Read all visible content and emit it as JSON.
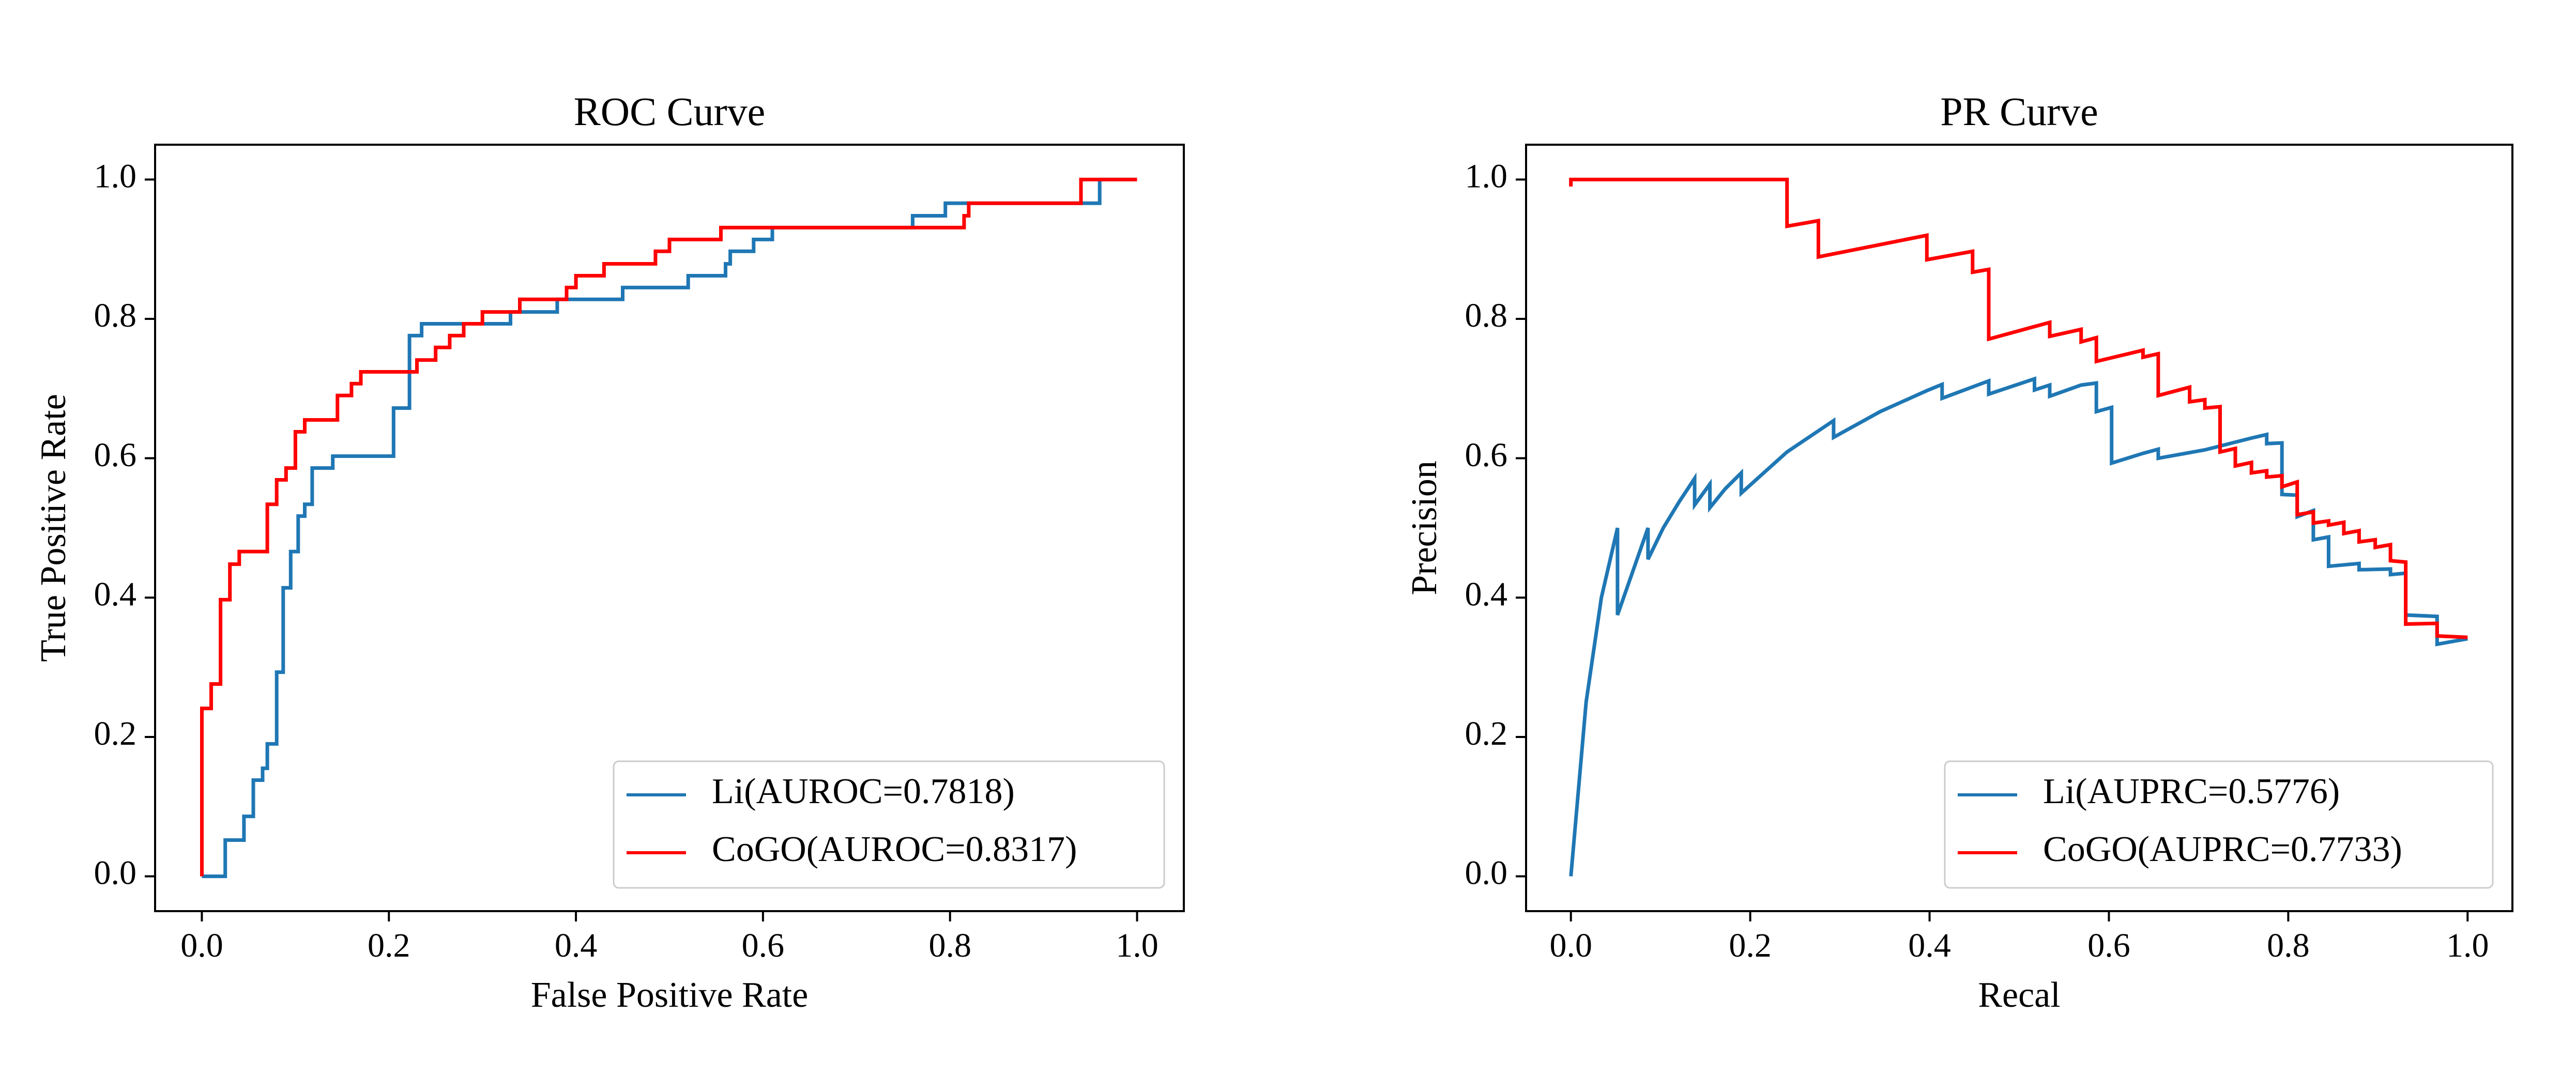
{
  "chart_data": [
    {
      "type": "line",
      "title": "ROC Curve",
      "xlabel": "False Positive Rate",
      "ylabel": "True Positive Rate",
      "xlim": [
        -0.05,
        1.05
      ],
      "ylim": [
        -0.05,
        1.05
      ],
      "xticks": [
        0.0,
        0.2,
        0.4,
        0.6,
        0.8,
        1.0
      ],
      "yticks": [
        0.0,
        0.2,
        0.4,
        0.6,
        0.8,
        1.0
      ],
      "xtick_labels": [
        "0.0",
        "0.2",
        "0.4",
        "0.6",
        "0.8",
        "1.0"
      ],
      "ytick_labels": [
        "0.0",
        "0.2",
        "0.4",
        "0.6",
        "0.8",
        "1.0"
      ],
      "legend_position": "lower-right",
      "series": [
        {
          "name": "Li(AUROC=0.7818)",
          "color": "#1f77b4",
          "points": [
            [
              0,
              0
            ],
            [
              0.025,
              0
            ],
            [
              0.025,
              0.052
            ],
            [
              0.045,
              0.052
            ],
            [
              0.045,
              0.086
            ],
            [
              0.055,
              0.086
            ],
            [
              0.055,
              0.138
            ],
            [
              0.065,
              0.138
            ],
            [
              0.065,
              0.155
            ],
            [
              0.07,
              0.155
            ],
            [
              0.07,
              0.19
            ],
            [
              0.08,
              0.19
            ],
            [
              0.08,
              0.293
            ],
            [
              0.087,
              0.293
            ],
            [
              0.087,
              0.414
            ],
            [
              0.095,
              0.414
            ],
            [
              0.095,
              0.466
            ],
            [
              0.103,
              0.466
            ],
            [
              0.103,
              0.517
            ],
            [
              0.11,
              0.517
            ],
            [
              0.11,
              0.534
            ],
            [
              0.118,
              0.534
            ],
            [
              0.118,
              0.586
            ],
            [
              0.14,
              0.586
            ],
            [
              0.14,
              0.603
            ],
            [
              0.205,
              0.603
            ],
            [
              0.205,
              0.672
            ],
            [
              0.222,
              0.672
            ],
            [
              0.222,
              0.776
            ],
            [
              0.235,
              0.776
            ],
            [
              0.235,
              0.793
            ],
            [
              0.33,
              0.793
            ],
            [
              0.33,
              0.81
            ],
            [
              0.38,
              0.81
            ],
            [
              0.38,
              0.828
            ],
            [
              0.45,
              0.828
            ],
            [
              0.45,
              0.845
            ],
            [
              0.52,
              0.845
            ],
            [
              0.52,
              0.862
            ],
            [
              0.56,
              0.862
            ],
            [
              0.56,
              0.879
            ],
            [
              0.565,
              0.879
            ],
            [
              0.565,
              0.897
            ],
            [
              0.59,
              0.897
            ],
            [
              0.59,
              0.914
            ],
            [
              0.61,
              0.914
            ],
            [
              0.61,
              0.931
            ],
            [
              0.76,
              0.931
            ],
            [
              0.76,
              0.948
            ],
            [
              0.795,
              0.948
            ],
            [
              0.795,
              0.966
            ],
            [
              0.96,
              0.966
            ],
            [
              0.96,
              1.0
            ],
            [
              1.0,
              1.0
            ]
          ]
        },
        {
          "name": "CoGO(AUROC=0.8317)",
          "color": "#ff0000",
          "points": [
            [
              0,
              0
            ],
            [
              0,
              0.241
            ],
            [
              0.01,
              0.241
            ],
            [
              0.01,
              0.276
            ],
            [
              0.02,
              0.276
            ],
            [
              0.02,
              0.397
            ],
            [
              0.03,
              0.397
            ],
            [
              0.03,
              0.448
            ],
            [
              0.04,
              0.448
            ],
            [
              0.04,
              0.466
            ],
            [
              0.07,
              0.466
            ],
            [
              0.07,
              0.534
            ],
            [
              0.08,
              0.534
            ],
            [
              0.08,
              0.569
            ],
            [
              0.09,
              0.569
            ],
            [
              0.09,
              0.586
            ],
            [
              0.1,
              0.586
            ],
            [
              0.1,
              0.638
            ],
            [
              0.11,
              0.638
            ],
            [
              0.11,
              0.655
            ],
            [
              0.145,
              0.655
            ],
            [
              0.145,
              0.69
            ],
            [
              0.16,
              0.69
            ],
            [
              0.16,
              0.707
            ],
            [
              0.17,
              0.707
            ],
            [
              0.17,
              0.724
            ],
            [
              0.23,
              0.724
            ],
            [
              0.23,
              0.741
            ],
            [
              0.25,
              0.741
            ],
            [
              0.25,
              0.759
            ],
            [
              0.265,
              0.759
            ],
            [
              0.265,
              0.776
            ],
            [
              0.28,
              0.776
            ],
            [
              0.28,
              0.793
            ],
            [
              0.3,
              0.793
            ],
            [
              0.3,
              0.81
            ],
            [
              0.34,
              0.81
            ],
            [
              0.34,
              0.828
            ],
            [
              0.39,
              0.828
            ],
            [
              0.39,
              0.845
            ],
            [
              0.4,
              0.845
            ],
            [
              0.4,
              0.862
            ],
            [
              0.43,
              0.862
            ],
            [
              0.43,
              0.879
            ],
            [
              0.485,
              0.879
            ],
            [
              0.485,
              0.897
            ],
            [
              0.5,
              0.897
            ],
            [
              0.5,
              0.914
            ],
            [
              0.555,
              0.914
            ],
            [
              0.555,
              0.931
            ],
            [
              0.815,
              0.931
            ],
            [
              0.815,
              0.948
            ],
            [
              0.82,
              0.948
            ],
            [
              0.82,
              0.966
            ],
            [
              0.94,
              0.966
            ],
            [
              0.94,
              1.0
            ],
            [
              1.0,
              1.0
            ]
          ]
        }
      ]
    },
    {
      "type": "line",
      "title": "PR Curve",
      "xlabel": "Recal",
      "ylabel": "Precision",
      "xlim": [
        -0.05,
        1.05
      ],
      "ylim": [
        -0.05,
        1.05
      ],
      "xticks": [
        0.0,
        0.2,
        0.4,
        0.6,
        0.8,
        1.0
      ],
      "yticks": [
        0.0,
        0.2,
        0.4,
        0.6,
        0.8,
        1.0
      ],
      "xtick_labels": [
        "0.0",
        "0.2",
        "0.4",
        "0.6",
        "0.8",
        "1.0"
      ],
      "ytick_labels": [
        "0.0",
        "0.2",
        "0.4",
        "0.6",
        "0.8",
        "1.0"
      ],
      "legend_position": "lower-right",
      "series": [
        {
          "name": "Li(AUPRC=0.5776)",
          "color": "#1f77b4",
          "points": [
            [
              0,
              0
            ],
            [
              0.017,
              0.25
            ],
            [
              0.034,
              0.4
            ],
            [
              0.052,
              0.5
            ],
            [
              0.052,
              0.375
            ],
            [
              0.086,
              0.5
            ],
            [
              0.086,
              0.455
            ],
            [
              0.103,
              0.5
            ],
            [
              0.121,
              0.538
            ],
            [
              0.138,
              0.571
            ],
            [
              0.138,
              0.533
            ],
            [
              0.155,
              0.563
            ],
            [
              0.155,
              0.529
            ],
            [
              0.172,
              0.556
            ],
            [
              0.19,
              0.579
            ],
            [
              0.19,
              0.55
            ],
            [
              0.241,
              0.609
            ],
            [
              0.293,
              0.654
            ],
            [
              0.293,
              0.63
            ],
            [
              0.345,
              0.667
            ],
            [
              0.397,
              0.697
            ],
            [
              0.414,
              0.706
            ],
            [
              0.414,
              0.686
            ],
            [
              0.466,
              0.711
            ],
            [
              0.466,
              0.692
            ],
            [
              0.517,
              0.714
            ],
            [
              0.517,
              0.698
            ],
            [
              0.534,
              0.705
            ],
            [
              0.534,
              0.689
            ],
            [
              0.569,
              0.705
            ],
            [
              0.586,
              0.708
            ],
            [
              0.586,
              0.667
            ],
            [
              0.603,
              0.673
            ],
            [
              0.603,
              0.593
            ],
            [
              0.638,
              0.607
            ],
            [
              0.655,
              0.613
            ],
            [
              0.655,
              0.6
            ],
            [
              0.707,
              0.612
            ],
            [
              0.759,
              0.629
            ],
            [
              0.776,
              0.634
            ],
            [
              0.776,
              0.621
            ],
            [
              0.793,
              0.622
            ],
            [
              0.793,
              0.548
            ],
            [
              0.81,
              0.547
            ],
            [
              0.81,
              0.516
            ],
            [
              0.828,
              0.525
            ],
            [
              0.828,
              0.483
            ],
            [
              0.845,
              0.487
            ],
            [
              0.845,
              0.445
            ],
            [
              0.879,
              0.449
            ],
            [
              0.879,
              0.44
            ],
            [
              0.914,
              0.441
            ],
            [
              0.914,
              0.433
            ],
            [
              0.931,
              0.435
            ],
            [
              0.931,
              0.375
            ],
            [
              0.966,
              0.373
            ],
            [
              0.966,
              0.333
            ],
            [
              1.0,
              0.341
            ]
          ]
        },
        {
          "name": "CoGO(AUPRC=0.7733)",
          "color": "#ff0000",
          "points": [
            [
              0,
              0.99
            ],
            [
              0,
              1.0
            ],
            [
              0.241,
              1.0
            ],
            [
              0.241,
              0.933
            ],
            [
              0.276,
              0.941
            ],
            [
              0.276,
              0.889
            ],
            [
              0.397,
              0.92
            ],
            [
              0.397,
              0.885
            ],
            [
              0.448,
              0.897
            ],
            [
              0.448,
              0.867
            ],
            [
              0.466,
              0.871
            ],
            [
              0.466,
              0.771
            ],
            [
              0.534,
              0.795
            ],
            [
              0.534,
              0.775
            ],
            [
              0.569,
              0.785
            ],
            [
              0.569,
              0.767
            ],
            [
              0.586,
              0.773
            ],
            [
              0.586,
              0.739
            ],
            [
              0.638,
              0.755
            ],
            [
              0.638,
              0.745
            ],
            [
              0.655,
              0.75
            ],
            [
              0.655,
              0.69
            ],
            [
              0.69,
              0.702
            ],
            [
              0.69,
              0.681
            ],
            [
              0.707,
              0.684
            ],
            [
              0.707,
              0.672
            ],
            [
              0.724,
              0.674
            ],
            [
              0.724,
              0.609
            ],
            [
              0.741,
              0.614
            ],
            [
              0.741,
              0.589
            ],
            [
              0.759,
              0.594
            ],
            [
              0.759,
              0.579
            ],
            [
              0.776,
              0.582
            ],
            [
              0.776,
              0.573
            ],
            [
              0.793,
              0.575
            ],
            [
              0.793,
              0.559
            ],
            [
              0.81,
              0.566
            ],
            [
              0.81,
              0.519
            ],
            [
              0.828,
              0.523
            ],
            [
              0.828,
              0.507
            ],
            [
              0.845,
              0.51
            ],
            [
              0.845,
              0.504
            ],
            [
              0.862,
              0.508
            ],
            [
              0.862,
              0.492
            ],
            [
              0.879,
              0.496
            ],
            [
              0.879,
              0.48
            ],
            [
              0.897,
              0.483
            ],
            [
              0.897,
              0.472
            ],
            [
              0.914,
              0.476
            ],
            [
              0.914,
              0.453
            ],
            [
              0.931,
              0.451
            ],
            [
              0.931,
              0.362
            ],
            [
              0.966,
              0.363
            ],
            [
              0.966,
              0.345
            ],
            [
              1.0,
              0.343
            ]
          ]
        }
      ]
    }
  ]
}
